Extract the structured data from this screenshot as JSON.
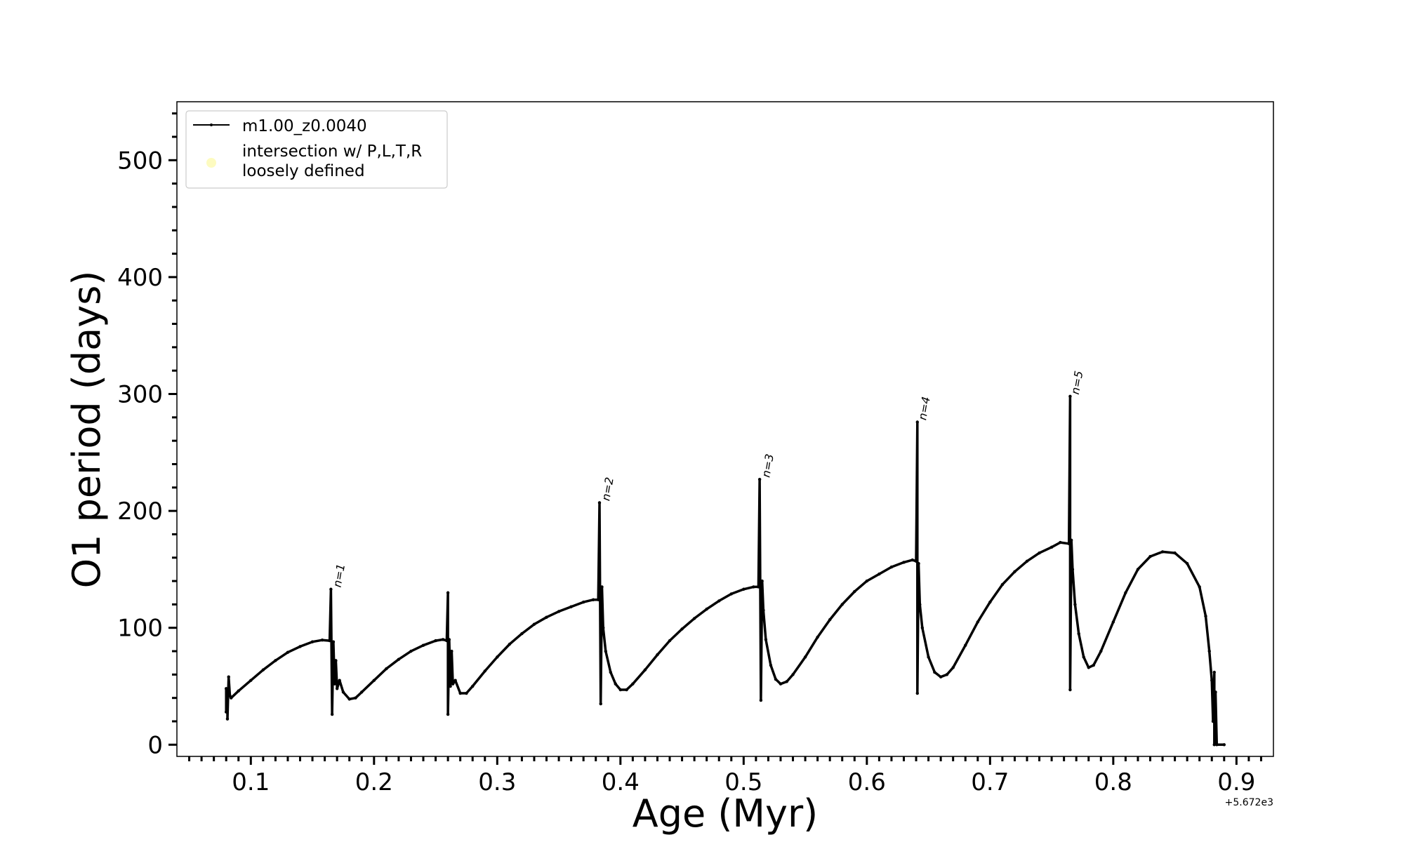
{
  "chart_data": {
    "type": "line",
    "xlabel": "Age (Myr)",
    "ylabel": "O1 period (days)",
    "x_offset_label": "+5.672e3",
    "xlim": [
      0.04,
      0.93
    ],
    "ylim": [
      -10,
      550
    ],
    "x_ticks": [
      0.1,
      0.2,
      0.3,
      0.4,
      0.5,
      0.6,
      0.7,
      0.8,
      0.9
    ],
    "x_tick_labels": [
      "0.1",
      "0.2",
      "0.3",
      "0.4",
      "0.5",
      "0.6",
      "0.7",
      "0.8",
      "0.9"
    ],
    "y_ticks": [
      0,
      100,
      200,
      300,
      400,
      500
    ],
    "y_tick_labels": [
      "0",
      "100",
      "200",
      "300",
      "400",
      "500"
    ],
    "legend": {
      "placement": "upper-left",
      "entries": [
        {
          "label": "m1.00_z0.0040",
          "color": "#000000",
          "marker": "line"
        },
        {
          "label_lines": [
            "intersection w/ P,L,T,R",
            "loosely defined"
          ],
          "color": "#fdfbc0",
          "marker": "circle"
        }
      ]
    },
    "annotations": [
      {
        "text": "n=1",
        "x": 0.169,
        "y": 133
      },
      {
        "text": "n=2",
        "x": 0.387,
        "y": 207
      },
      {
        "text": "n=3",
        "x": 0.517,
        "y": 227
      },
      {
        "text": "n=4",
        "x": 0.644,
        "y": 276
      },
      {
        "text": "n=5",
        "x": 0.768,
        "y": 298
      }
    ],
    "series": [
      {
        "name": "m1.00_z0.0040",
        "color": "#000000",
        "points": [
          [
            0.08,
            48
          ],
          [
            0.08,
            28
          ],
          [
            0.081,
            47
          ],
          [
            0.081,
            22
          ],
          [
            0.082,
            58
          ],
          [
            0.083,
            42
          ],
          [
            0.084,
            40
          ],
          [
            0.09,
            46
          ],
          [
            0.1,
            55
          ],
          [
            0.11,
            64
          ],
          [
            0.12,
            72
          ],
          [
            0.13,
            79
          ],
          [
            0.14,
            84
          ],
          [
            0.15,
            88
          ],
          [
            0.158,
            89.5
          ],
          [
            0.164,
            89
          ],
          [
            0.165,
            133
          ],
          [
            0.166,
            26
          ],
          [
            0.167,
            88
          ],
          [
            0.168,
            52
          ],
          [
            0.169,
            72
          ],
          [
            0.17,
            48
          ],
          [
            0.172,
            55
          ],
          [
            0.175,
            45
          ],
          [
            0.18,
            39
          ],
          [
            0.185,
            40
          ],
          [
            0.19,
            45
          ],
          [
            0.2,
            55
          ],
          [
            0.21,
            65
          ],
          [
            0.22,
            73
          ],
          [
            0.23,
            80
          ],
          [
            0.24,
            85
          ],
          [
            0.25,
            89
          ],
          [
            0.256,
            90
          ],
          [
            0.259,
            89
          ],
          [
            0.26,
            130
          ],
          [
            0.26,
            26
          ],
          [
            0.261,
            90
          ],
          [
            0.262,
            50
          ],
          [
            0.263,
            80
          ],
          [
            0.264,
            52
          ],
          [
            0.266,
            55
          ],
          [
            0.27,
            44
          ],
          [
            0.275,
            44
          ],
          [
            0.28,
            50
          ],
          [
            0.29,
            63
          ],
          [
            0.3,
            75
          ],
          [
            0.31,
            86
          ],
          [
            0.32,
            95
          ],
          [
            0.33,
            103
          ],
          [
            0.34,
            109
          ],
          [
            0.35,
            114
          ],
          [
            0.36,
            118
          ],
          [
            0.37,
            122
          ],
          [
            0.378,
            124
          ],
          [
            0.382,
            124
          ],
          [
            0.383,
            207
          ],
          [
            0.384,
            35
          ],
          [
            0.385,
            135
          ],
          [
            0.386,
            100
          ],
          [
            0.388,
            80
          ],
          [
            0.392,
            62
          ],
          [
            0.396,
            52
          ],
          [
            0.4,
            47
          ],
          [
            0.405,
            47
          ],
          [
            0.41,
            52
          ],
          [
            0.42,
            64
          ],
          [
            0.43,
            77
          ],
          [
            0.44,
            89
          ],
          [
            0.45,
            99
          ],
          [
            0.46,
            108
          ],
          [
            0.47,
            116
          ],
          [
            0.48,
            123
          ],
          [
            0.49,
            129
          ],
          [
            0.5,
            133
          ],
          [
            0.508,
            135
          ],
          [
            0.512,
            135
          ],
          [
            0.513,
            227
          ],
          [
            0.514,
            38
          ],
          [
            0.515,
            140
          ],
          [
            0.516,
            115
          ],
          [
            0.518,
            90
          ],
          [
            0.522,
            68
          ],
          [
            0.526,
            56
          ],
          [
            0.53,
            52
          ],
          [
            0.535,
            54
          ],
          [
            0.54,
            60
          ],
          [
            0.55,
            75
          ],
          [
            0.56,
            92
          ],
          [
            0.57,
            107
          ],
          [
            0.58,
            120
          ],
          [
            0.59,
            131
          ],
          [
            0.6,
            140
          ],
          [
            0.61,
            146
          ],
          [
            0.62,
            152
          ],
          [
            0.63,
            156
          ],
          [
            0.637,
            158
          ],
          [
            0.64,
            157
          ],
          [
            0.641,
            276
          ],
          [
            0.641,
            44
          ],
          [
            0.642,
            155
          ],
          [
            0.643,
            120
          ],
          [
            0.645,
            100
          ],
          [
            0.65,
            75
          ],
          [
            0.655,
            62
          ],
          [
            0.66,
            58
          ],
          [
            0.665,
            60
          ],
          [
            0.67,
            66
          ],
          [
            0.68,
            85
          ],
          [
            0.69,
            105
          ],
          [
            0.7,
            122
          ],
          [
            0.71,
            137
          ],
          [
            0.72,
            148
          ],
          [
            0.73,
            157
          ],
          [
            0.74,
            164
          ],
          [
            0.75,
            169
          ],
          [
            0.757,
            173
          ],
          [
            0.764,
            172
          ],
          [
            0.765,
            298
          ],
          [
            0.765,
            47
          ],
          [
            0.766,
            175
          ],
          [
            0.767,
            150
          ],
          [
            0.769,
            120
          ],
          [
            0.772,
            95
          ],
          [
            0.776,
            75
          ],
          [
            0.78,
            66
          ],
          [
            0.784,
            68
          ],
          [
            0.79,
            80
          ],
          [
            0.8,
            105
          ],
          [
            0.81,
            130
          ],
          [
            0.82,
            150
          ],
          [
            0.83,
            161
          ],
          [
            0.84,
            165
          ],
          [
            0.85,
            164
          ],
          [
            0.86,
            155
          ],
          [
            0.87,
            135
          ],
          [
            0.875,
            110
          ],
          [
            0.878,
            80
          ],
          [
            0.88,
            55
          ],
          [
            0.881,
            20
          ],
          [
            0.882,
            62
          ],
          [
            0.882,
            0
          ],
          [
            0.883,
            45
          ],
          [
            0.884,
            0
          ],
          [
            0.89,
            0
          ]
        ]
      }
    ]
  }
}
